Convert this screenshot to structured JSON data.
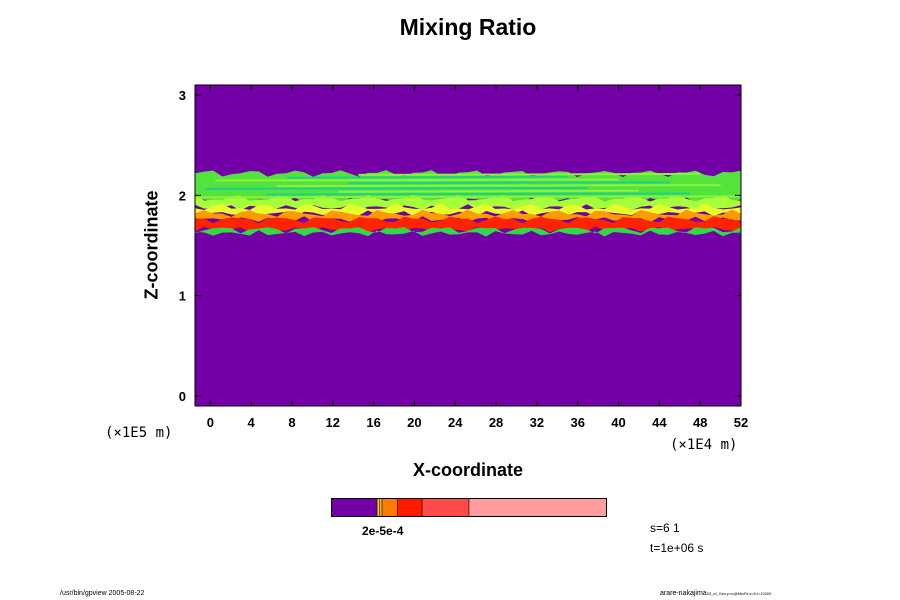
{
  "chart_data": {
    "type": "heatmap",
    "title": "Mixing Ratio",
    "xlabel": "X-coordinate",
    "ylabel": "Z-coordinate",
    "x_unit": "(×1E4 m)",
    "y_unit": "(×1E5 m)",
    "xlim": [
      -1.5,
      52
    ],
    "ylim": [
      -0.1,
      3.1
    ],
    "x_ticks": [
      0,
      4,
      8,
      12,
      16,
      20,
      24,
      28,
      32,
      36,
      40,
      44,
      48,
      52
    ],
    "y_ticks": [
      0,
      1,
      2,
      3
    ],
    "background_color": "#7300a6",
    "bands": [
      {
        "name": "upper-wispy-green",
        "z_bottom": 1.95,
        "z_top": 2.22,
        "color": "#54e33c"
      },
      {
        "name": "light-green",
        "z_bottom": 1.88,
        "z_top": 1.97,
        "color": "#a6ff3a"
      },
      {
        "name": "yellow-green",
        "z_bottom": 1.82,
        "z_top": 1.88,
        "color": "#e6ff2a"
      },
      {
        "name": "orange",
        "z_bottom": 1.76,
        "z_top": 1.82,
        "color": "#ff9a00"
      },
      {
        "name": "red",
        "z_bottom": 1.66,
        "z_top": 1.76,
        "color": "#ff2400"
      },
      {
        "name": "green-fringe",
        "z_bottom": 1.62,
        "z_top": 1.66,
        "color": "#32d84a"
      }
    ],
    "colorbar": {
      "label": "2e-5e-4",
      "segments": [
        {
          "from": 0.0,
          "to": 0.167,
          "color": "#7300a6"
        },
        {
          "from": 0.167,
          "to": 0.175,
          "color": "#e6d400"
        },
        {
          "from": 0.175,
          "to": 0.185,
          "color": "#ffb000"
        },
        {
          "from": 0.185,
          "to": 0.24,
          "color": "#ff7a00"
        },
        {
          "from": 0.24,
          "to": 0.33,
          "color": "#ff1a00"
        },
        {
          "from": 0.33,
          "to": 0.5,
          "color": "#ff4a4a"
        },
        {
          "from": 0.5,
          "to": 1.0,
          "color": "#ff9c9c"
        }
      ]
    },
    "annotations": {
      "s": "s=6 1",
      "t": "t=1e+06 s",
      "footer_left": "/usr/bin/gpview 2005-08-22",
      "footer_right": "arare-nakajima",
      "footer_right_small": "03_el_Gerry.nc@MixRt,s=8,t=10000"
    }
  }
}
